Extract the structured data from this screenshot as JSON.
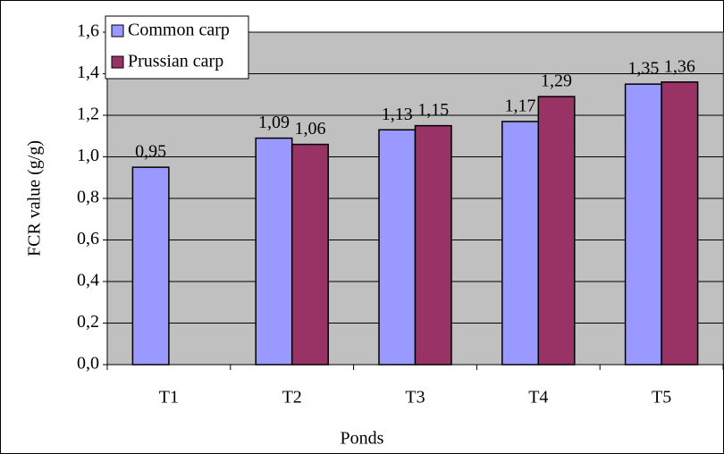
{
  "chart_data": {
    "type": "bar",
    "x_label": "Ponds",
    "y_label": "FCR value (g/g)",
    "categories": [
      "T1",
      "T2",
      "T3",
      "T4",
      "T5"
    ],
    "series": [
      {
        "name": "Common carp",
        "color": "#9999ff",
        "values": [
          0.95,
          1.09,
          1.13,
          1.17,
          1.35
        ],
        "value_labels": [
          "0,95",
          "1,09",
          "1,13",
          "1,17",
          "1,35"
        ]
      },
      {
        "name": "Prussian carp",
        "color": "#993366",
        "values": [
          null,
          1.06,
          1.15,
          1.29,
          1.36
        ],
        "value_labels": [
          null,
          "1,06",
          "1,15",
          "1,29",
          "1,36"
        ]
      }
    ],
    "ylim": [
      0,
      1.6
    ],
    "yticks": [
      {
        "value": 0,
        "label": "0,0"
      },
      {
        "value": 0.2,
        "label": "0,2"
      },
      {
        "value": 0.4,
        "label": "0,4"
      },
      {
        "value": 0.6,
        "label": "0,6"
      },
      {
        "value": 0.8,
        "label": "0,8"
      },
      {
        "value": 1.0,
        "label": "1,0"
      },
      {
        "value": 1.2,
        "label": "1,2"
      },
      {
        "value": 1.4,
        "label": "1,4"
      },
      {
        "value": 1.6,
        "label": "1,6"
      }
    ],
    "grid": true,
    "legend": "top-left"
  }
}
